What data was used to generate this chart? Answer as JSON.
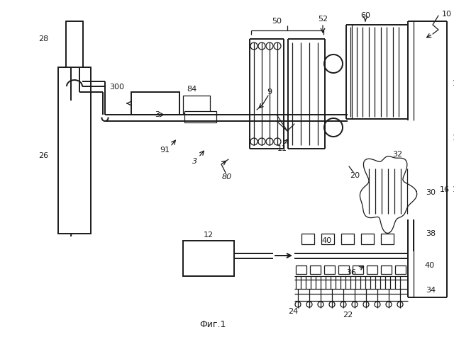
{
  "bg_color": "#ffffff",
  "line_color": "#1a1a1a",
  "fig_label": "Фиг.1"
}
